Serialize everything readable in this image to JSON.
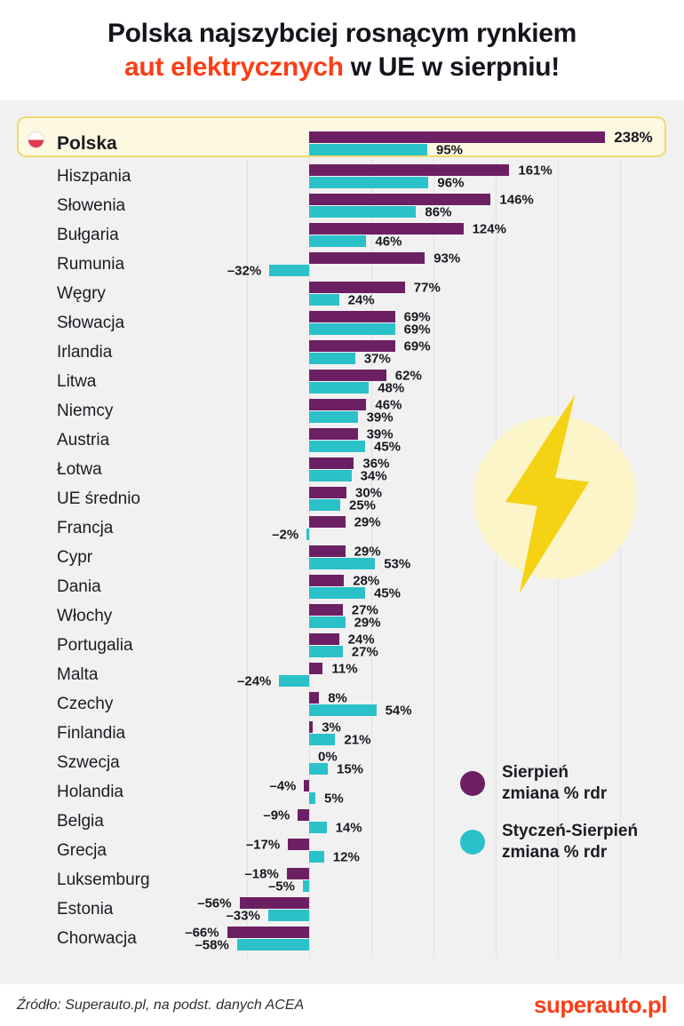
{
  "header": {
    "title_line1": "Polska najszybciej rosnącym rynkiem",
    "title_line2_highlight": "aut elektrycznych",
    "title_line2_rest": " w UE w sierpniu!"
  },
  "legend": {
    "entries": [
      {
        "line1": "Sierpień",
        "line2": "zmiana % rdr",
        "color": "#6C2063"
      },
      {
        "line1": "Styczeń-Sierpień",
        "line2": "zmiana % rdr",
        "color": "#2BC1C8"
      }
    ]
  },
  "footer": {
    "source": "Źródło: Superauto.pl, na podst. danych ACEA",
    "logo": "superauto.pl"
  },
  "colors": {
    "august_bar": "#6C2063",
    "ytd_bar": "#2BC1C8",
    "accent_orange": "#FB3E17",
    "highlight_fill": "#FCF8E1",
    "highlight_border": "#EFDA6C",
    "flag_red": "#E03A4E",
    "bolt_yellow": "#F3D313",
    "bolt_circle": "#FCF5C9",
    "page_background": "#F2F1F2",
    "gridline": "#E1E0E2"
  },
  "chart_data": {
    "type": "bar",
    "orientation": "horizontal",
    "title": "Polska najszybciej rosnącym rynkiem aut elektrycznych w UE w sierpniu!",
    "value_suffix": "%",
    "xlim": [
      -100,
      250
    ],
    "gridlines": [
      -50,
      0,
      50,
      100,
      150,
      200,
      250
    ],
    "grid": true,
    "legend_position": "right-bottom",
    "highlight_category": "Polska",
    "categories": [
      "Polska",
      "Hiszpania",
      "Słowenia",
      "Bułgaria",
      "Rumunia",
      "Węgry",
      "Słowacja",
      "Irlandia",
      "Litwa",
      "Niemcy",
      "Austria",
      "Łotwa",
      "UE średnio",
      "Francja",
      "Cypr",
      "Dania",
      "Włochy",
      "Portugalia",
      "Malta",
      "Czechy",
      "Finlandia",
      "Szwecja",
      "Holandia",
      "Belgia",
      "Grecja",
      "Luksemburg",
      "Estonia",
      "Chorwacja"
    ],
    "series": [
      {
        "name": "Sierpień zmiana % rdr",
        "color": "#6C2063",
        "values": [
          238,
          161,
          146,
          124,
          93,
          77,
          69,
          69,
          62,
          46,
          39,
          36,
          30,
          29,
          29,
          28,
          27,
          24,
          11,
          8,
          3,
          0,
          -4,
          -9,
          -17,
          -18,
          -56,
          -66
        ]
      },
      {
        "name": "Styczeń-Sierpień zmiana % rdr",
        "color": "#2BC1C8",
        "values": [
          95,
          96,
          86,
          46,
          -32,
          24,
          69,
          37,
          48,
          39,
          45,
          34,
          25,
          -2,
          53,
          45,
          29,
          27,
          -24,
          54,
          21,
          15,
          5,
          14,
          12,
          -5,
          -33,
          -58
        ]
      }
    ]
  }
}
